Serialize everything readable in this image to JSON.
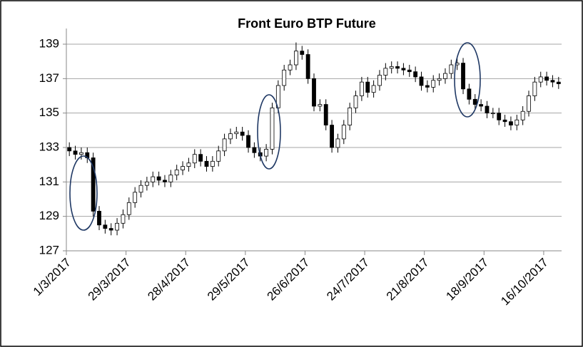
{
  "chart_data": {
    "type": "candlestick",
    "title": "Front Euro BTP Future",
    "categories": [
      "1/3/2017",
      null,
      null,
      null,
      null,
      null,
      null,
      null,
      null,
      null,
      "29/3/2017",
      null,
      null,
      null,
      null,
      null,
      null,
      null,
      null,
      null,
      "28/4/2017",
      null,
      null,
      null,
      null,
      null,
      null,
      null,
      null,
      null,
      "29/5/2017",
      null,
      null,
      null,
      null,
      null,
      null,
      null,
      null,
      null,
      "26/6/2017",
      null,
      null,
      null,
      null,
      null,
      null,
      null,
      null,
      null,
      "24/7/2017",
      null,
      null,
      null,
      null,
      null,
      null,
      null,
      null,
      null,
      "21/8/2017",
      null,
      null,
      null,
      null,
      null,
      null,
      null,
      null,
      null,
      "18/9/2017",
      null,
      null,
      null,
      null,
      null,
      null,
      null,
      null,
      null,
      "16/10/2017",
      null,
      null
    ],
    "open": [
      133.0,
      132.8,
      132.6,
      132.7,
      132.4,
      129.3,
      128.5,
      128.3,
      128.2,
      128.6,
      129.1,
      129.8,
      130.4,
      130.8,
      131.0,
      131.3,
      131.1,
      131.0,
      131.4,
      131.7,
      131.9,
      132.1,
      132.6,
      132.2,
      131.9,
      132.2,
      132.8,
      133.5,
      133.8,
      133.9,
      133.7,
      133.0,
      132.7,
      132.5,
      132.9,
      135.3,
      136.6,
      137.5,
      137.8,
      138.6,
      138.4,
      137.0,
      135.4,
      135.5,
      134.3,
      133.0,
      133.5,
      134.3,
      135.3,
      136.0,
      136.8,
      136.2,
      136.6,
      137.2,
      137.6,
      137.7,
      137.6,
      137.5,
      137.4,
      137.1,
      136.6,
      136.5,
      136.9,
      137.0,
      137.3,
      137.8,
      137.9,
      136.4,
      135.8,
      135.5,
      135.4,
      135.0,
      135.0,
      134.6,
      134.5,
      134.3,
      134.6,
      135.1,
      136.0,
      136.8,
      137.1,
      136.9,
      136.8
    ],
    "high": [
      133.3,
      133.1,
      133.0,
      133.0,
      132.7,
      129.6,
      128.8,
      128.6,
      128.9,
      129.4,
      130.1,
      130.7,
      131.1,
      131.3,
      131.6,
      131.6,
      131.4,
      131.7,
      132.0,
      132.2,
      132.4,
      132.9,
      132.9,
      132.5,
      132.5,
      133.1,
      133.8,
      134.1,
      134.2,
      134.2,
      134.0,
      133.3,
      133.0,
      133.2,
      135.6,
      136.9,
      137.8,
      138.1,
      139.1,
      138.9,
      138.7,
      137.3,
      135.8,
      135.8,
      134.6,
      133.8,
      134.6,
      135.6,
      136.3,
      137.1,
      137.1,
      136.9,
      137.5,
      137.9,
      138.0,
      138.0,
      137.9,
      137.8,
      137.7,
      137.4,
      136.9,
      137.2,
      137.3,
      137.6,
      138.1,
      138.2,
      138.2,
      136.7,
      136.1,
      135.8,
      135.7,
      135.3,
      135.3,
      134.9,
      134.8,
      134.9,
      135.4,
      136.3,
      137.1,
      137.4,
      137.4,
      137.2,
      137.1
    ],
    "low": [
      132.5,
      132.3,
      132.3,
      132.1,
      129.0,
      128.2,
      128.0,
      127.9,
      127.9,
      128.3,
      128.8,
      129.5,
      130.1,
      130.5,
      130.7,
      130.8,
      130.7,
      130.7,
      131.1,
      131.4,
      131.6,
      131.8,
      131.9,
      131.6,
      131.6,
      131.9,
      132.5,
      133.2,
      133.5,
      133.4,
      132.7,
      132.4,
      132.2,
      132.2,
      132.6,
      135.0,
      136.3,
      137.2,
      137.5,
      138.1,
      136.7,
      135.1,
      135.1,
      134.0,
      132.7,
      132.7,
      133.2,
      134.0,
      135.0,
      135.7,
      135.9,
      135.9,
      136.3,
      136.9,
      137.3,
      137.3,
      137.2,
      137.1,
      136.8,
      136.3,
      136.2,
      136.2,
      136.6,
      136.7,
      137.0,
      137.5,
      136.1,
      135.5,
      135.2,
      135.1,
      134.7,
      134.7,
      134.3,
      134.2,
      134.0,
      134.0,
      134.3,
      134.8,
      135.7,
      136.5,
      136.6,
      136.5,
      136.4
    ],
    "close": [
      132.8,
      132.6,
      132.7,
      132.4,
      129.3,
      128.5,
      128.3,
      128.2,
      128.6,
      129.1,
      129.8,
      130.4,
      130.8,
      131.0,
      131.3,
      131.1,
      131.0,
      131.4,
      131.7,
      131.9,
      132.1,
      132.6,
      132.2,
      131.9,
      132.2,
      132.8,
      133.5,
      133.8,
      133.9,
      133.7,
      133.0,
      132.7,
      132.5,
      132.9,
      135.3,
      136.6,
      137.5,
      137.8,
      138.6,
      138.4,
      137.0,
      135.4,
      135.5,
      134.3,
      133.0,
      133.5,
      134.3,
      135.3,
      136.0,
      136.8,
      136.2,
      136.6,
      137.2,
      137.6,
      137.7,
      137.6,
      137.5,
      137.4,
      137.1,
      136.6,
      136.5,
      136.9,
      137.0,
      137.3,
      137.8,
      137.9,
      136.4,
      135.8,
      135.5,
      135.4,
      135.0,
      135.0,
      134.6,
      134.5,
      134.3,
      134.6,
      135.1,
      136.0,
      136.8,
      137.1,
      136.9,
      136.8,
      136.7
    ],
    "ylim": [
      127,
      139
    ],
    "yticks": [
      127,
      129,
      131,
      133,
      135,
      137,
      139
    ],
    "grid": true,
    "up_color": "#ffffff",
    "down_color": "#000000"
  }
}
